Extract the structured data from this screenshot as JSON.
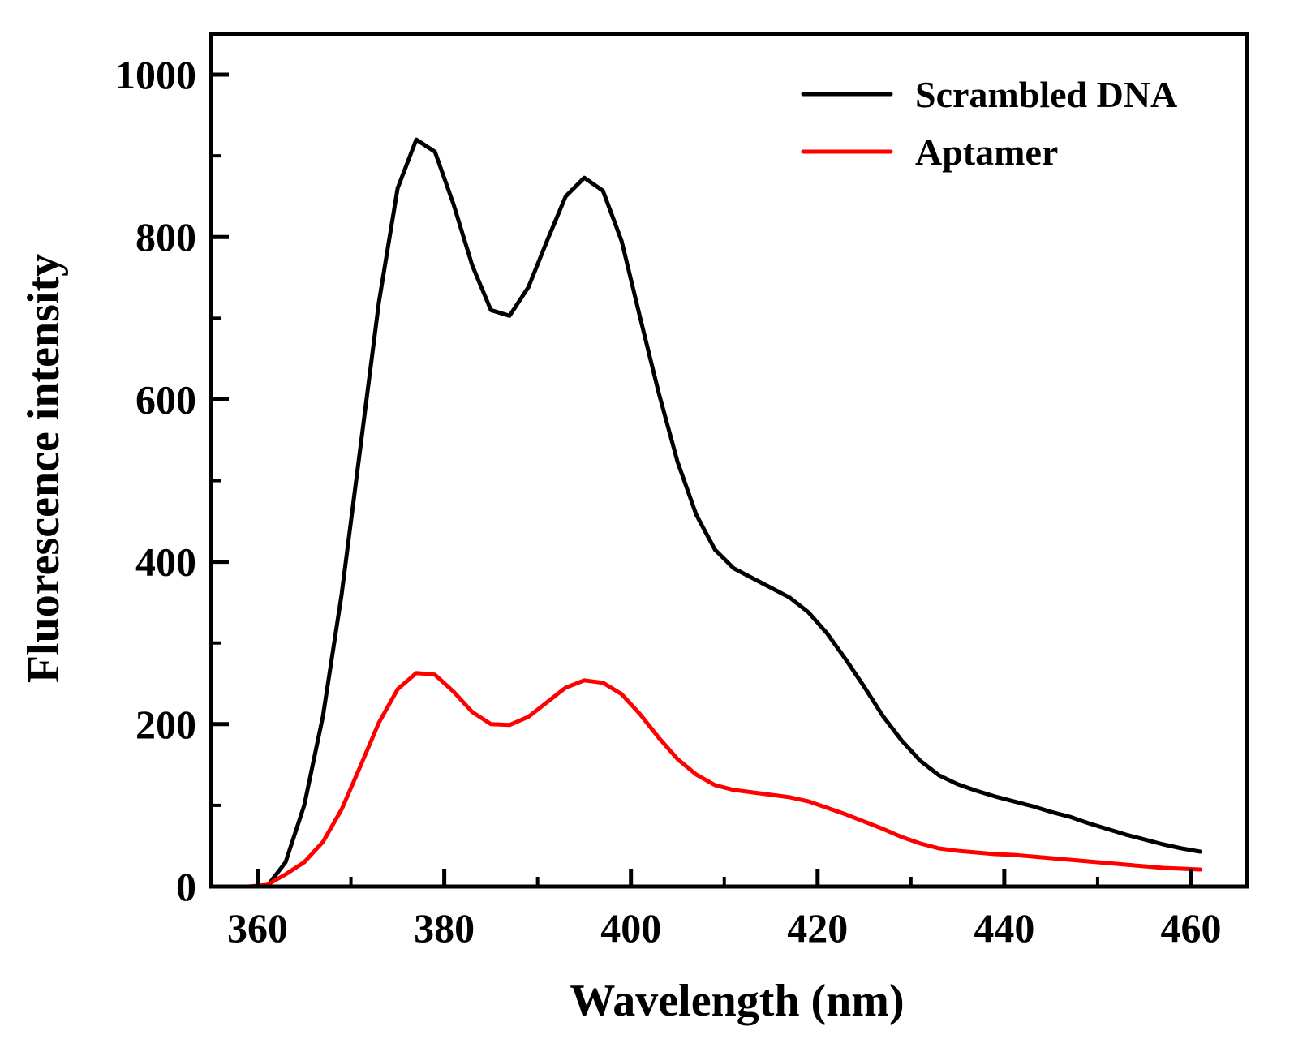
{
  "chart_data": {
    "type": "line",
    "title": "",
    "xlabel": "Wavelength (nm)",
    "ylabel": "Fluorescence intensity",
    "xlim": [
      355,
      466
    ],
    "ylim": [
      0,
      1050
    ],
    "xticks": [
      360,
      380,
      400,
      420,
      440,
      460
    ],
    "yticks": [
      0,
      200,
      400,
      600,
      800,
      1000
    ],
    "x_minor_step": 10,
    "y_minor_step": 100,
    "grid": false,
    "legend_position": "top-right",
    "series": [
      {
        "name": "Scrambled DNA",
        "color": "#000000",
        "x": [
          361,
          363,
          365,
          367,
          369,
          371,
          373,
          375,
          377,
          379,
          381,
          383,
          385,
          387,
          389,
          391,
          393,
          395,
          397,
          399,
          401,
          403,
          405,
          407,
          409,
          411,
          413,
          415,
          417,
          419,
          421,
          423,
          425,
          427,
          429,
          431,
          433,
          435,
          437,
          439,
          441,
          443,
          445,
          447,
          449,
          451,
          453,
          455,
          457,
          459,
          461
        ],
        "values": [
          0,
          30,
          100,
          210,
          360,
          540,
          720,
          860,
          920,
          905,
          840,
          765,
          710,
          703,
          738,
          795,
          850,
          873,
          857,
          795,
          700,
          607,
          523,
          458,
          415,
          392,
          380,
          368,
          356,
          338,
          312,
          280,
          246,
          210,
          180,
          155,
          137,
          126,
          118,
          111,
          105,
          99,
          92,
          86,
          78,
          71,
          64,
          58,
          52,
          47,
          43
        ]
      },
      {
        "name": "Aptamer",
        "color": "#ff0000",
        "x": [
          359,
          361,
          363,
          365,
          367,
          369,
          371,
          373,
          375,
          377,
          379,
          381,
          383,
          385,
          387,
          389,
          391,
          393,
          395,
          397,
          399,
          401,
          403,
          405,
          407,
          409,
          411,
          413,
          415,
          417,
          419,
          421,
          423,
          425,
          427,
          429,
          431,
          433,
          435,
          437,
          439,
          441,
          443,
          445,
          447,
          449,
          451,
          453,
          455,
          457,
          459,
          461
        ],
        "values": [
          0,
          2,
          15,
          30,
          55,
          95,
          148,
          202,
          243,
          263,
          261,
          240,
          215,
          200,
          199,
          209,
          227,
          245,
          254,
          251,
          237,
          212,
          183,
          157,
          138,
          125,
          119,
          116,
          113,
          110,
          105,
          97,
          89,
          80,
          71,
          61,
          53,
          47,
          44,
          42,
          40,
          39,
          37,
          35,
          33,
          31,
          29,
          27,
          25,
          23,
          22,
          21
        ]
      }
    ]
  }
}
